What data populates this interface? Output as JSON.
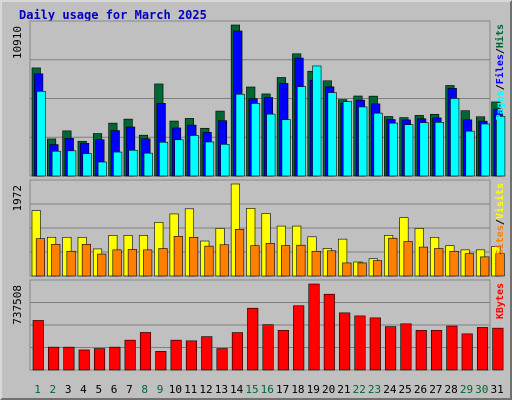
{
  "chart_data": {
    "title": "Daily usage for March 2025",
    "type": "bar",
    "categories": [
      "1",
      "2",
      "3",
      "4",
      "5",
      "6",
      "7",
      "8",
      "9",
      "10",
      "11",
      "12",
      "13",
      "14",
      "15",
      "16",
      "17",
      "18",
      "19",
      "20",
      "21",
      "22",
      "23",
      "24",
      "25",
      "26",
      "27",
      "28",
      "29",
      "30",
      "31"
    ],
    "weekend_days": [
      "1",
      "2",
      "8",
      "9",
      "15",
      "16",
      "22",
      "23",
      "29",
      "30"
    ],
    "colors": {
      "hits": "#006633",
      "files": "#0000ff",
      "pages": "#00ffff",
      "visits": "#ffff00",
      "sites": "#ff8000",
      "kbytes": "#ff0000",
      "weekday_label": "#000000",
      "weekend_label": "#006633",
      "title": "#0000c0",
      "background": "#c0c0c0",
      "gridline": "#808080"
    },
    "panels": [
      {
        "id": "requests",
        "max_label": "10910",
        "ylim": [
          0,
          10910
        ],
        "legend": [
          {
            "name": "Hits",
            "color": "#006633"
          },
          {
            "sep": "/"
          },
          {
            "name": "Files",
            "color": "#0000ff"
          },
          {
            "sep": "/"
          },
          {
            "name": "Pages",
            "color": "#00ffff"
          }
        ],
        "series": [
          {
            "name": "Hits",
            "color": "#006633",
            "values": [
              7810,
              2680,
              3260,
              2510,
              3070,
              3820,
              4110,
              2950,
              6650,
              3970,
              4160,
              3450,
              4690,
              10910,
              6430,
              5930,
              7120,
              8830,
              7570,
              6880,
              5520,
              5780,
              5770,
              4300,
              4220,
              4380,
              4460,
              6540,
              4720,
              4280,
              5350
            ]
          },
          {
            "name": "Files",
            "color": "#0000ff",
            "values": [
              7380,
              2270,
              2720,
              2360,
              2620,
              3280,
              3540,
              2690,
              5250,
              3470,
              3680,
              3150,
              4000,
              10480,
              5590,
              5670,
              6690,
              8520,
              6910,
              6440,
              5250,
              5480,
              5210,
              4080,
              4050,
              4140,
              4200,
              6330,
              4060,
              3960,
              4830
            ]
          },
          {
            "name": "Pages",
            "color": "#00ffff",
            "values": [
              6120,
              1790,
              1820,
              1620,
              1010,
              1730,
              1860,
              1650,
              2440,
              2620,
              2930,
              2460,
              2290,
              5910,
              5240,
              4470,
              4070,
              6460,
              7950,
              6030,
              5370,
              4990,
              4540,
              3820,
              3710,
              3860,
              3880,
              5600,
              3240,
              3760,
              4310
            ]
          }
        ]
      },
      {
        "id": "visitors",
        "max_label": "1972",
        "ylim": [
          0,
          1972
        ],
        "legend": [
          {
            "name": "Visits",
            "color": "#ffff00"
          },
          {
            "sep": "/"
          },
          {
            "name": "Sites",
            "color": "#ff8000"
          }
        ],
        "series": [
          {
            "name": "Visits",
            "color": "#ffff00",
            "values": [
              1400,
              830,
              830,
              830,
              580,
              870,
              870,
              870,
              1150,
              1330,
              1440,
              750,
              1020,
              1972,
              1450,
              1340,
              1070,
              1070,
              840,
              590,
              790,
              300,
              370,
              870,
              1250,
              1020,
              830,
              650,
              560,
              560,
              630
            ]
          },
          {
            "name": "Sites",
            "color": "#ff8000",
            "values": [
              800,
              680,
              530,
              680,
              470,
              560,
              570,
              560,
              590,
              850,
              830,
              640,
              670,
              1000,
              650,
              700,
              650,
              660,
              530,
              540,
              280,
              280,
              330,
              810,
              740,
              620,
              590,
              530,
              480,
              410,
              480
            ]
          }
        ]
      },
      {
        "id": "kbytes",
        "max_label": "737508",
        "ylim": [
          0,
          737508
        ],
        "legend": [
          {
            "name": "KBytes",
            "color": "#ff0000"
          }
        ],
        "series": [
          {
            "name": "KBytes",
            "color": "#ff0000",
            "values": [
              425000,
              196000,
              196000,
              172000,
              184000,
              196000,
              256000,
              322000,
              160000,
              256000,
              250000,
              286000,
              184000,
              321000,
              530000,
              389000,
              340000,
              551000,
              737508,
              650000,
              490000,
              464000,
              447000,
              372000,
              396000,
              340000,
              340000,
              377000,
              310000,
              365000,
              359000
            ]
          }
        ]
      }
    ]
  }
}
